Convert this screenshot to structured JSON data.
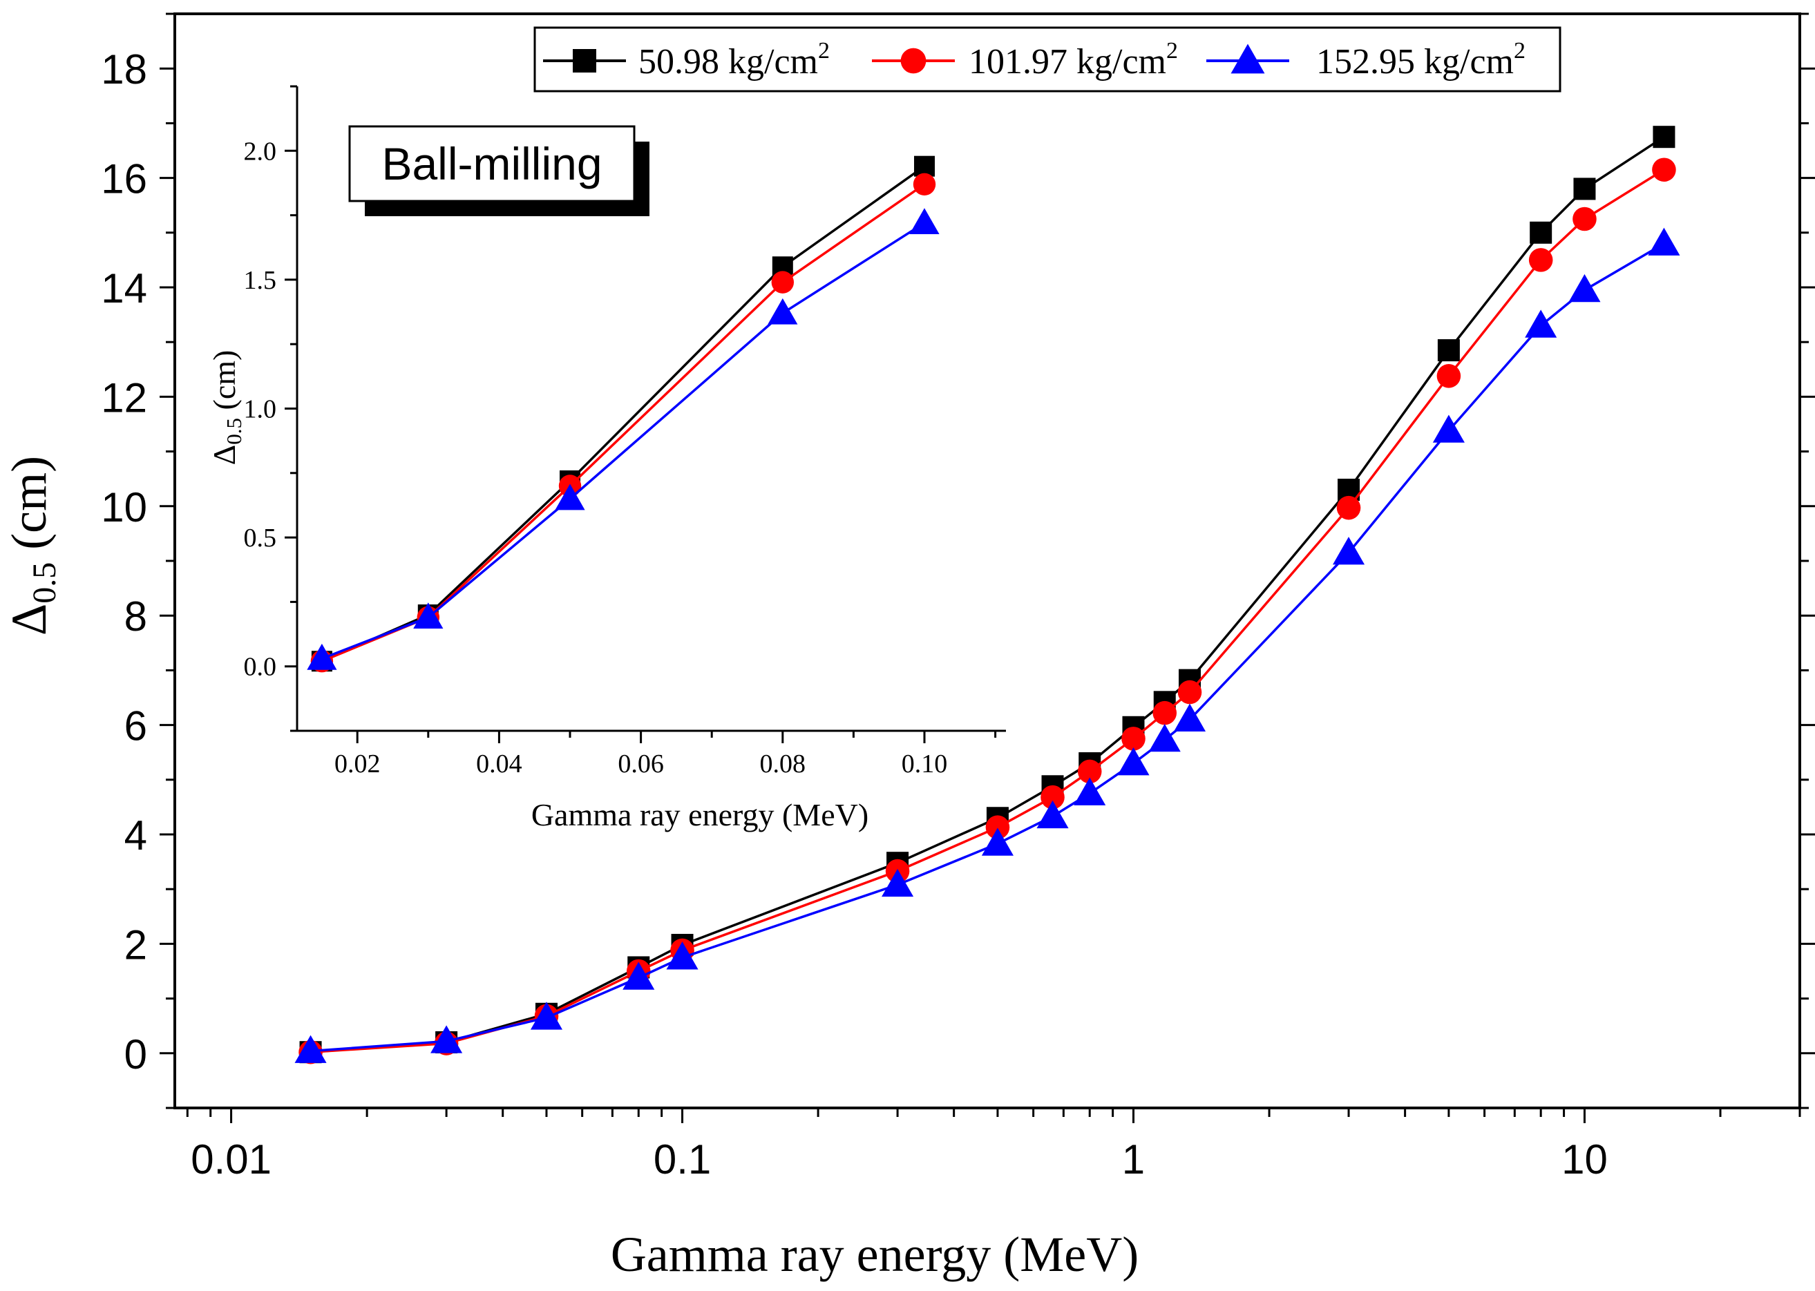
{
  "chart_data": [
    {
      "id": "main",
      "type": "line",
      "xscale": "log",
      "xlabel": "Gamma ray energy (MeV)",
      "ylabel_main": "Δ",
      "ylabel_sub": "0.5",
      "ylabel_unit": " (cm)",
      "xlim": [
        0.0075,
        30
      ],
      "ylim": [
        -1,
        19
      ],
      "xticks": [
        0.01,
        0.1,
        1,
        10
      ],
      "xtick_labels": [
        "0.01",
        "0.1",
        "1",
        "10"
      ],
      "yticks": [
        0,
        2,
        4,
        6,
        8,
        10,
        12,
        14,
        16,
        18
      ],
      "ytick_labels": [
        "0",
        "2",
        "4",
        "6",
        "8",
        "10",
        "12",
        "14",
        "16",
        "18"
      ],
      "x": [
        0.015,
        0.03,
        0.05,
        0.08,
        0.1,
        0.3,
        0.5,
        0.662,
        0.8,
        1.0,
        1.173,
        1.333,
        3,
        5,
        8,
        10,
        15
      ],
      "series": [
        {
          "name": "50.98 kg/cm",
          "sup": "2",
          "marker": "square",
          "color": "#000000",
          "values": [
            0.02,
            0.2,
            0.72,
            1.57,
            1.98,
            3.48,
            4.3,
            4.88,
            5.3,
            5.96,
            6.42,
            6.82,
            10.3,
            12.85,
            15,
            15.8,
            16.75
          ]
        },
        {
          "name": "101.97 kg/cm",
          "sup": "2",
          "marker": "circle",
          "color": "#ff0000",
          "values": [
            0.02,
            0.18,
            0.68,
            1.5,
            1.88,
            3.33,
            4.13,
            4.68,
            5.15,
            5.75,
            6.22,
            6.6,
            9.97,
            12.38,
            14.5,
            15.25,
            16.15
          ]
        },
        {
          "name": "152.95 kg/cm",
          "sup": "2",
          "marker": "triangle",
          "color": "#0000ff",
          "values": [
            0.04,
            0.22,
            0.65,
            1.38,
            1.75,
            3.08,
            3.83,
            4.33,
            4.75,
            5.3,
            5.73,
            6.1,
            9.15,
            11.38,
            13.3,
            13.95,
            14.8
          ]
        }
      ],
      "legend_position": "top-right"
    },
    {
      "id": "inset",
      "type": "line",
      "xscale": "linear",
      "xlabel": "Gamma ray energy (MeV)",
      "ylabel_main": "Δ",
      "ylabel_sub": "0.5",
      "ylabel_unit": " (cm)",
      "xlim": [
        0.0115,
        0.1115
      ],
      "ylim": [
        -0.25,
        2.25
      ],
      "xticks": [
        0.02,
        0.04,
        0.06,
        0.08,
        0.1
      ],
      "xtick_labels": [
        "0.02",
        "0.04",
        "0.06",
        "0.08",
        "0.10"
      ],
      "yticks": [
        0,
        0.5,
        1.0,
        1.5,
        2.0
      ],
      "ytick_labels": [
        "0.0",
        "0.5",
        "1.0",
        "1.5",
        "2.0"
      ],
      "x": [
        0.015,
        0.03,
        0.05,
        0.08,
        0.1
      ],
      "series": [
        {
          "name": "50.98 kg/cm",
          "sup": "2",
          "marker": "square",
          "color": "#000000",
          "values": [
            0.02,
            0.2,
            0.72,
            1.55,
            1.94
          ]
        },
        {
          "name": "101.97 kg/cm",
          "sup": "2",
          "marker": "circle",
          "color": "#ff0000",
          "values": [
            0.02,
            0.19,
            0.7,
            1.49,
            1.87
          ]
        },
        {
          "name": "152.95 kg/cm",
          "sup": "2",
          "marker": "triangle",
          "color": "#0000ff",
          "values": [
            0.03,
            0.19,
            0.65,
            1.37,
            1.72
          ]
        }
      ]
    }
  ],
  "annotation": {
    "text": "Ball-milling"
  }
}
